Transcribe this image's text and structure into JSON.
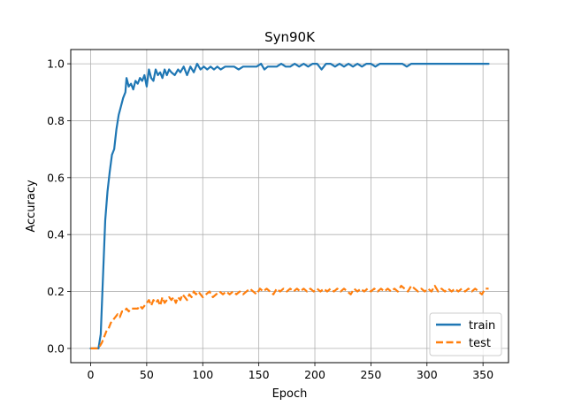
{
  "chart_data": {
    "type": "line",
    "title": "Syn90K",
    "xlabel": "Epoch",
    "ylabel": "Accuracy",
    "xlim": [
      -17.75,
      372.75
    ],
    "ylim": [
      -0.05,
      1.05
    ],
    "x_ticks": [
      0,
      50,
      100,
      150,
      200,
      250,
      300,
      350
    ],
    "y_ticks": [
      0.0,
      0.2,
      0.4,
      0.6,
      0.8,
      1.0
    ],
    "y_tick_labels": [
      "0.0",
      "0.2",
      "0.4",
      "0.6",
      "0.8",
      "1.0"
    ],
    "grid": true,
    "legend_position": "lower-right",
    "series": [
      {
        "name": "train",
        "color": "#1f77b4",
        "line_style": "solid",
        "points": [
          [
            0,
            0.0
          ],
          [
            4,
            0.0
          ],
          [
            7,
            0.0
          ],
          [
            9,
            0.05
          ],
          [
            11,
            0.25
          ],
          [
            13,
            0.45
          ],
          [
            15,
            0.55
          ],
          [
            17,
            0.62
          ],
          [
            19,
            0.68
          ],
          [
            21,
            0.7
          ],
          [
            23,
            0.77
          ],
          [
            25,
            0.82
          ],
          [
            27,
            0.85
          ],
          [
            29,
            0.88
          ],
          [
            31,
            0.9
          ],
          [
            32,
            0.95
          ],
          [
            34,
            0.92
          ],
          [
            36,
            0.93
          ],
          [
            38,
            0.91
          ],
          [
            40,
            0.94
          ],
          [
            42,
            0.93
          ],
          [
            44,
            0.95
          ],
          [
            46,
            0.94
          ],
          [
            48,
            0.96
          ],
          [
            50,
            0.92
          ],
          [
            52,
            0.98
          ],
          [
            54,
            0.95
          ],
          [
            56,
            0.94
          ],
          [
            58,
            0.98
          ],
          [
            60,
            0.96
          ],
          [
            62,
            0.97
          ],
          [
            64,
            0.95
          ],
          [
            66,
            0.98
          ],
          [
            68,
            0.96
          ],
          [
            70,
            0.98
          ],
          [
            72,
            0.97
          ],
          [
            75,
            0.96
          ],
          [
            78,
            0.98
          ],
          [
            80,
            0.97
          ],
          [
            83,
            0.99
          ],
          [
            86,
            0.96
          ],
          [
            89,
            0.99
          ],
          [
            92,
            0.97
          ],
          [
            95,
            1.0
          ],
          [
            98,
            0.98
          ],
          [
            101,
            0.99
          ],
          [
            104,
            0.98
          ],
          [
            107,
            0.99
          ],
          [
            110,
            0.98
          ],
          [
            113,
            0.99
          ],
          [
            116,
            0.98
          ],
          [
            120,
            0.99
          ],
          [
            124,
            0.99
          ],
          [
            128,
            0.99
          ],
          [
            132,
            0.98
          ],
          [
            136,
            0.99
          ],
          [
            140,
            0.99
          ],
          [
            144,
            0.99
          ],
          [
            148,
            0.99
          ],
          [
            152,
            1.0
          ],
          [
            155,
            0.98
          ],
          [
            158,
            0.99
          ],
          [
            162,
            0.99
          ],
          [
            166,
            0.99
          ],
          [
            170,
            1.0
          ],
          [
            174,
            0.99
          ],
          [
            178,
            0.99
          ],
          [
            182,
            1.0
          ],
          [
            186,
            0.99
          ],
          [
            190,
            1.0
          ],
          [
            194,
            0.99
          ],
          [
            198,
            1.0
          ],
          [
            202,
            1.0
          ],
          [
            206,
            0.98
          ],
          [
            210,
            1.0
          ],
          [
            214,
            1.0
          ],
          [
            218,
            0.99
          ],
          [
            222,
            1.0
          ],
          [
            226,
            0.99
          ],
          [
            230,
            1.0
          ],
          [
            234,
            0.99
          ],
          [
            238,
            1.0
          ],
          [
            242,
            0.99
          ],
          [
            246,
            1.0
          ],
          [
            250,
            1.0
          ],
          [
            254,
            0.99
          ],
          [
            258,
            1.0
          ],
          [
            262,
            1.0
          ],
          [
            266,
            1.0
          ],
          [
            270,
            1.0
          ],
          [
            274,
            1.0
          ],
          [
            278,
            1.0
          ],
          [
            282,
            0.99
          ],
          [
            286,
            1.0
          ],
          [
            290,
            1.0
          ],
          [
            294,
            1.0
          ],
          [
            298,
            1.0
          ],
          [
            302,
            1.0
          ],
          [
            306,
            1.0
          ],
          [
            310,
            1.0
          ],
          [
            314,
            1.0
          ],
          [
            318,
            1.0
          ],
          [
            322,
            1.0
          ],
          [
            326,
            1.0
          ],
          [
            330,
            1.0
          ],
          [
            334,
            1.0
          ],
          [
            338,
            1.0
          ],
          [
            342,
            1.0
          ],
          [
            346,
            1.0
          ],
          [
            350,
            1.0
          ],
          [
            355,
            1.0
          ]
        ]
      },
      {
        "name": "test",
        "color": "#ff7f0e",
        "line_style": "dashed",
        "points": [
          [
            0,
            0.0
          ],
          [
            4,
            0.0
          ],
          [
            7,
            0.0
          ],
          [
            10,
            0.02
          ],
          [
            12,
            0.04
          ],
          [
            14,
            0.06
          ],
          [
            16,
            0.07
          ],
          [
            18,
            0.09
          ],
          [
            20,
            0.1
          ],
          [
            22,
            0.11
          ],
          [
            24,
            0.12
          ],
          [
            26,
            0.11
          ],
          [
            28,
            0.13
          ],
          [
            30,
            0.13
          ],
          [
            32,
            0.14
          ],
          [
            34,
            0.13
          ],
          [
            36,
            0.14
          ],
          [
            38,
            0.14
          ],
          [
            40,
            0.14
          ],
          [
            42,
            0.14
          ],
          [
            44,
            0.15
          ],
          [
            46,
            0.14
          ],
          [
            48,
            0.15
          ],
          [
            50,
            0.16
          ],
          [
            52,
            0.17
          ],
          [
            54,
            0.15
          ],
          [
            56,
            0.17
          ],
          [
            58,
            0.16
          ],
          [
            60,
            0.17
          ],
          [
            62,
            0.15
          ],
          [
            64,
            0.18
          ],
          [
            66,
            0.16
          ],
          [
            68,
            0.17
          ],
          [
            70,
            0.18
          ],
          [
            72,
            0.17
          ],
          [
            74,
            0.18
          ],
          [
            76,
            0.16
          ],
          [
            78,
            0.18
          ],
          [
            80,
            0.17
          ],
          [
            82,
            0.19
          ],
          [
            84,
            0.18
          ],
          [
            86,
            0.17
          ],
          [
            88,
            0.19
          ],
          [
            90,
            0.18
          ],
          [
            92,
            0.2
          ],
          [
            94,
            0.19
          ],
          [
            96,
            0.2
          ],
          [
            98,
            0.19
          ],
          [
            100,
            0.18
          ],
          [
            103,
            0.19
          ],
          [
            106,
            0.2
          ],
          [
            109,
            0.18
          ],
          [
            112,
            0.19
          ],
          [
            115,
            0.2
          ],
          [
            118,
            0.19
          ],
          [
            121,
            0.2
          ],
          [
            124,
            0.19
          ],
          [
            127,
            0.2
          ],
          [
            130,
            0.19
          ],
          [
            133,
            0.2
          ],
          [
            136,
            0.19
          ],
          [
            139,
            0.2
          ],
          [
            142,
            0.21
          ],
          [
            145,
            0.2
          ],
          [
            148,
            0.19
          ],
          [
            151,
            0.21
          ],
          [
            154,
            0.2
          ],
          [
            157,
            0.21
          ],
          [
            160,
            0.2
          ],
          [
            163,
            0.19
          ],
          [
            166,
            0.21
          ],
          [
            169,
            0.2
          ],
          [
            172,
            0.21
          ],
          [
            175,
            0.2
          ],
          [
            178,
            0.21
          ],
          [
            181,
            0.2
          ],
          [
            184,
            0.21
          ],
          [
            187,
            0.2
          ],
          [
            190,
            0.21
          ],
          [
            193,
            0.2
          ],
          [
            196,
            0.21
          ],
          [
            199,
            0.2
          ],
          [
            202,
            0.21
          ],
          [
            205,
            0.2
          ],
          [
            208,
            0.21
          ],
          [
            211,
            0.2
          ],
          [
            214,
            0.21
          ],
          [
            217,
            0.2
          ],
          [
            220,
            0.21
          ],
          [
            223,
            0.2
          ],
          [
            226,
            0.21
          ],
          [
            229,
            0.2
          ],
          [
            232,
            0.19
          ],
          [
            235,
            0.21
          ],
          [
            238,
            0.2
          ],
          [
            241,
            0.21
          ],
          [
            244,
            0.2
          ],
          [
            247,
            0.21
          ],
          [
            250,
            0.2
          ],
          [
            253,
            0.21
          ],
          [
            256,
            0.2
          ],
          [
            259,
            0.21
          ],
          [
            262,
            0.2
          ],
          [
            265,
            0.21
          ],
          [
            268,
            0.2
          ],
          [
            271,
            0.21
          ],
          [
            274,
            0.2
          ],
          [
            277,
            0.22
          ],
          [
            280,
            0.21
          ],
          [
            283,
            0.2
          ],
          [
            286,
            0.22
          ],
          [
            289,
            0.21
          ],
          [
            292,
            0.2
          ],
          [
            295,
            0.21
          ],
          [
            298,
            0.2
          ],
          [
            301,
            0.21
          ],
          [
            304,
            0.2
          ],
          [
            307,
            0.22
          ],
          [
            310,
            0.2
          ],
          [
            313,
            0.21
          ],
          [
            316,
            0.2
          ],
          [
            319,
            0.21
          ],
          [
            322,
            0.2
          ],
          [
            325,
            0.21
          ],
          [
            328,
            0.2
          ],
          [
            331,
            0.21
          ],
          [
            334,
            0.2
          ],
          [
            337,
            0.21
          ],
          [
            340,
            0.2
          ],
          [
            343,
            0.21
          ],
          [
            346,
            0.2
          ],
          [
            349,
            0.19
          ],
          [
            352,
            0.21
          ],
          [
            355,
            0.21
          ]
        ]
      }
    ]
  }
}
